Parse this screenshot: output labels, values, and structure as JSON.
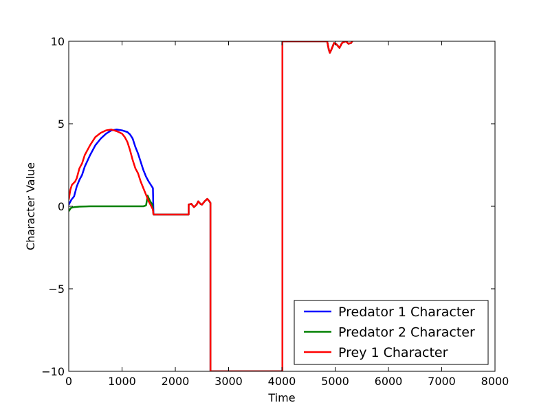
{
  "chart_data": {
    "type": "line",
    "title": "",
    "xlabel": "Time",
    "ylabel": "Character Value",
    "xlim": [
      0,
      8000
    ],
    "ylim": [
      -10,
      10
    ],
    "x_ticks": [
      0,
      1000,
      2000,
      3000,
      4000,
      5000,
      6000,
      7000,
      8000
    ],
    "y_ticks": [
      -10,
      -5,
      0,
      5,
      10
    ],
    "x_tick_labels": [
      "0",
      "1000",
      "2000",
      "3000",
      "4000",
      "5000",
      "6000",
      "7000",
      "8000"
    ],
    "y_tick_labels": [
      "−10",
      "−5",
      "0",
      "5",
      "10"
    ],
    "grid": false,
    "legend_position": "lower-right",
    "series": [
      {
        "name": "Predator 1 Character",
        "color": "#0000ff",
        "points": [
          [
            0,
            0.1
          ],
          [
            50,
            0.4
          ],
          [
            100,
            0.6
          ],
          [
            150,
            1.2
          ],
          [
            200,
            1.6
          ],
          [
            250,
            1.9
          ],
          [
            300,
            2.4
          ],
          [
            400,
            3.1
          ],
          [
            500,
            3.7
          ],
          [
            600,
            4.1
          ],
          [
            700,
            4.4
          ],
          [
            800,
            4.6
          ],
          [
            900,
            4.65
          ],
          [
            1000,
            4.6
          ],
          [
            1100,
            4.5
          ],
          [
            1150,
            4.35
          ],
          [
            1200,
            4.1
          ],
          [
            1250,
            3.6
          ],
          [
            1300,
            3.2
          ],
          [
            1350,
            2.7
          ],
          [
            1400,
            2.2
          ],
          [
            1450,
            1.8
          ],
          [
            1500,
            1.5
          ],
          [
            1580,
            1.1
          ],
          [
            1590,
            -0.5
          ],
          [
            2000,
            -0.5
          ],
          [
            2250,
            -0.5
          ],
          [
            2250,
            0.1
          ],
          [
            2300,
            0.15
          ],
          [
            2350,
            -0.05
          ],
          [
            2400,
            0.1
          ],
          [
            2430,
            0.3
          ],
          [
            2470,
            0.15
          ],
          [
            2500,
            0.1
          ],
          [
            2550,
            0.3
          ],
          [
            2600,
            0.45
          ],
          [
            2640,
            0.3
          ],
          [
            2660,
            0.2
          ],
          [
            2660,
            -10
          ],
          [
            4010,
            -10
          ],
          [
            4010,
            10
          ],
          [
            4850,
            10
          ],
          [
            4880,
            9.5
          ],
          [
            4900,
            9.3
          ],
          [
            4930,
            9.5
          ],
          [
            4980,
            9.9
          ],
          [
            5030,
            9.8
          ],
          [
            5080,
            9.6
          ],
          [
            5130,
            9.9
          ],
          [
            5200,
            10
          ],
          [
            5250,
            9.85
          ],
          [
            5300,
            9.9
          ],
          [
            5320,
            10
          ]
        ]
      },
      {
        "name": "Predator 2 Character",
        "color": "#008000",
        "points": [
          [
            0,
            -0.3
          ],
          [
            40,
            -0.1
          ],
          [
            100,
            -0.05
          ],
          [
            200,
            -0.02
          ],
          [
            400,
            0
          ],
          [
            800,
            0
          ],
          [
            1200,
            0
          ],
          [
            1400,
            0
          ],
          [
            1450,
            0.05
          ],
          [
            1470,
            0.4
          ],
          [
            1480,
            0.65
          ],
          [
            1500,
            0.5
          ],
          [
            1530,
            0.3
          ],
          [
            1570,
            0.1
          ],
          [
            1590,
            -0.5
          ],
          [
            2000,
            -0.5
          ],
          [
            2250,
            -0.5
          ],
          [
            2250,
            0.1
          ],
          [
            2300,
            0.15
          ],
          [
            2350,
            -0.05
          ],
          [
            2400,
            0.1
          ],
          [
            2430,
            0.3
          ],
          [
            2470,
            0.15
          ],
          [
            2500,
            0.1
          ],
          [
            2550,
            0.3
          ],
          [
            2600,
            0.45
          ],
          [
            2640,
            0.3
          ],
          [
            2660,
            0.2
          ],
          [
            2660,
            -10
          ],
          [
            4010,
            -10
          ],
          [
            4010,
            10
          ],
          [
            4850,
            10
          ],
          [
            4880,
            9.5
          ],
          [
            4900,
            9.3
          ],
          [
            4930,
            9.5
          ],
          [
            4980,
            9.9
          ],
          [
            5030,
            9.8
          ],
          [
            5080,
            9.6
          ],
          [
            5130,
            9.9
          ],
          [
            5200,
            10
          ],
          [
            5250,
            9.85
          ],
          [
            5300,
            9.9
          ],
          [
            5320,
            10
          ]
        ]
      },
      {
        "name": "Prey 1 Character",
        "color": "#ff0000",
        "points": [
          [
            0,
            0.4
          ],
          [
            30,
            1.0
          ],
          [
            60,
            1.3
          ],
          [
            120,
            1.5
          ],
          [
            150,
            1.7
          ],
          [
            200,
            2.3
          ],
          [
            250,
            2.6
          ],
          [
            300,
            3.1
          ],
          [
            400,
            3.7
          ],
          [
            500,
            4.2
          ],
          [
            600,
            4.45
          ],
          [
            700,
            4.6
          ],
          [
            800,
            4.65
          ],
          [
            900,
            4.55
          ],
          [
            1000,
            4.4
          ],
          [
            1050,
            4.2
          ],
          [
            1100,
            3.9
          ],
          [
            1150,
            3.4
          ],
          [
            1200,
            2.8
          ],
          [
            1250,
            2.3
          ],
          [
            1300,
            2.0
          ],
          [
            1350,
            1.5
          ],
          [
            1400,
            1.1
          ],
          [
            1450,
            0.7
          ],
          [
            1500,
            0.3
          ],
          [
            1550,
            0.0
          ],
          [
            1580,
            -0.2
          ],
          [
            1590,
            -0.5
          ],
          [
            2000,
            -0.5
          ],
          [
            2250,
            -0.5
          ],
          [
            2250,
            0.1
          ],
          [
            2300,
            0.15
          ],
          [
            2350,
            -0.05
          ],
          [
            2400,
            0.1
          ],
          [
            2430,
            0.3
          ],
          [
            2470,
            0.15
          ],
          [
            2500,
            0.1
          ],
          [
            2550,
            0.3
          ],
          [
            2600,
            0.45
          ],
          [
            2640,
            0.3
          ],
          [
            2660,
            0.2
          ],
          [
            2660,
            -10
          ],
          [
            4010,
            -10
          ],
          [
            4010,
            10
          ],
          [
            4850,
            10
          ],
          [
            4880,
            9.5
          ],
          [
            4900,
            9.3
          ],
          [
            4930,
            9.5
          ],
          [
            4980,
            9.9
          ],
          [
            5030,
            9.8
          ],
          [
            5080,
            9.6
          ],
          [
            5130,
            9.9
          ],
          [
            5200,
            10
          ],
          [
            5250,
            9.85
          ],
          [
            5300,
            9.9
          ],
          [
            5320,
            10
          ]
        ]
      }
    ]
  }
}
